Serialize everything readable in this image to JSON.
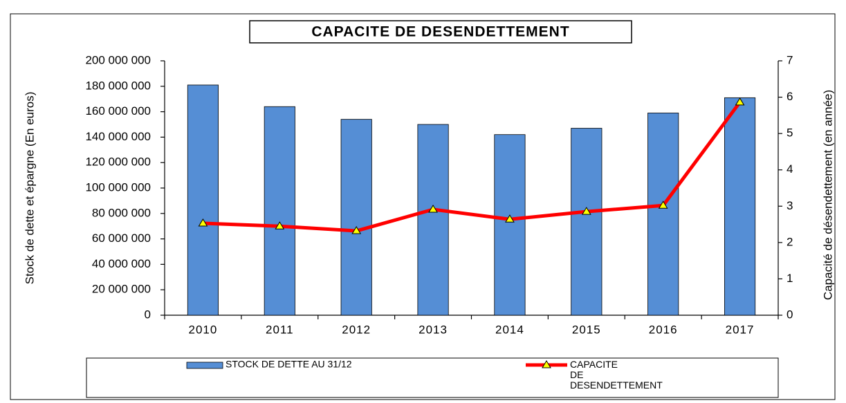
{
  "chart_data": {
    "type": "bar+line",
    "title": "CAPACITE DE DESENDETTEMENT",
    "y_label": "Stock de dette et épargne (En euros)",
    "y2_label": "Capacité de désendettement (en année)",
    "categories": [
      "2010",
      "2011",
      "2012",
      "2013",
      "2014",
      "2015",
      "2016",
      "2017"
    ],
    "series": [
      {
        "name": "STOCK DE DETTE AU 31/12",
        "type": "bar",
        "color": "#558ed5",
        "values": [
          181000000,
          164000000,
          154000000,
          150000000,
          142000000,
          147000000,
          159000000,
          171000000
        ]
      },
      {
        "name": "CAPACITE DE DESENDETTEMENT",
        "type": "line",
        "axis": "y2",
        "color": "#ff0000",
        "marker_color": "#ffff00",
        "values": [
          2.53,
          2.45,
          2.32,
          2.91,
          2.64,
          2.85,
          3.02,
          5.86
        ]
      }
    ],
    "ylim": [
      0,
      200000000
    ],
    "yticks": [
      0,
      {
        "value": 20000000,
        "label": "20 000 000"
      },
      {
        "value": 40000000,
        "label": "40 000 000"
      },
      {
        "value": 60000000,
        "label": "60 000 000"
      },
      {
        "value": 80000000,
        "label": "80 000 000"
      },
      {
        "value": 100000000,
        "label": "100 000 000"
      },
      {
        "value": 120000000,
        "label": "120 000 000"
      },
      {
        "value": 140000000,
        "label": "140 000 000"
      },
      {
        "value": 160000000,
        "label": "160 000 000"
      },
      {
        "value": 180000000,
        "label": "180 000 000"
      },
      {
        "value": 200000000,
        "label": "200 000 000"
      }
    ],
    "y2lim": [
      0,
      7
    ],
    "y2ticks": [
      0,
      1,
      2,
      3,
      4,
      5,
      6,
      7
    ],
    "grid": false,
    "legend": "bottom"
  }
}
